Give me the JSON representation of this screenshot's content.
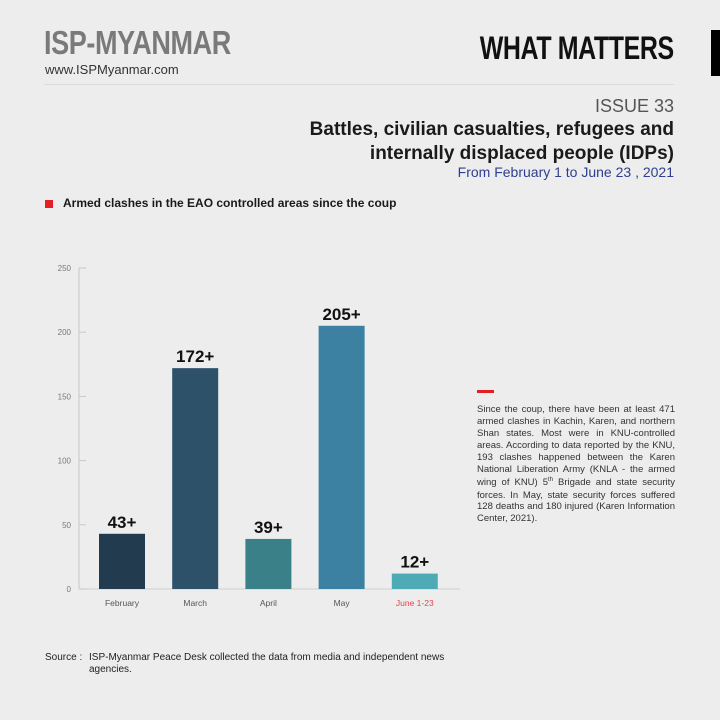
{
  "header": {
    "brand": "ISP-MYANMAR",
    "url": "www.ISPMyanmar.com",
    "series_name": "WHAT MATTERS",
    "issue": "ISSUE 33",
    "title": "Battles, civilian casualties, refugees and internally displaced people (IDPs)",
    "date_range": "From February 1 to June 23 , 2021"
  },
  "section": {
    "title": "Armed clashes in the EAO controlled areas since the coup"
  },
  "chart_data": {
    "type": "bar",
    "title": "Armed clashes in the EAO controlled areas since the coup",
    "categories": [
      "February",
      "March",
      "April",
      "May",
      "June 1-23"
    ],
    "values": [
      43,
      172,
      39,
      205,
      12
    ],
    "data_labels": [
      "43+",
      "172+",
      "39+",
      "205+",
      "12+"
    ],
    "bar_colors": [
      "#223b4e",
      "#2c5169",
      "#3a8089",
      "#3c80a2",
      "#4eabb5"
    ],
    "highlight_category_color": "#e8434a",
    "xlabel": "",
    "ylabel": "",
    "ylim": [
      0,
      250
    ],
    "yticks": [
      0,
      50,
      100,
      150,
      200,
      250
    ],
    "grid": false,
    "legend": "none"
  },
  "sidebar": {
    "paragraph_before_sup": "Since the coup, there have been at least 471 armed clashes in Kachin, Karen, and northern Shan states. Most were in KNU-controlled areas. According to data reported by the KNU, 193 clashes happened between the Karen National Liberation Army (KNLA - the armed wing of KNU) 5",
    "sup": "th",
    "paragraph_after_sup": " Brigade and state security forces. In May, state security forces suffered 128 deaths and 180 injured (Karen Information Center, 2021)."
  },
  "footer": {
    "source_label": "Source :",
    "source_text": "ISP-Myanmar Peace Desk collected the data from media and independent news agencies."
  }
}
